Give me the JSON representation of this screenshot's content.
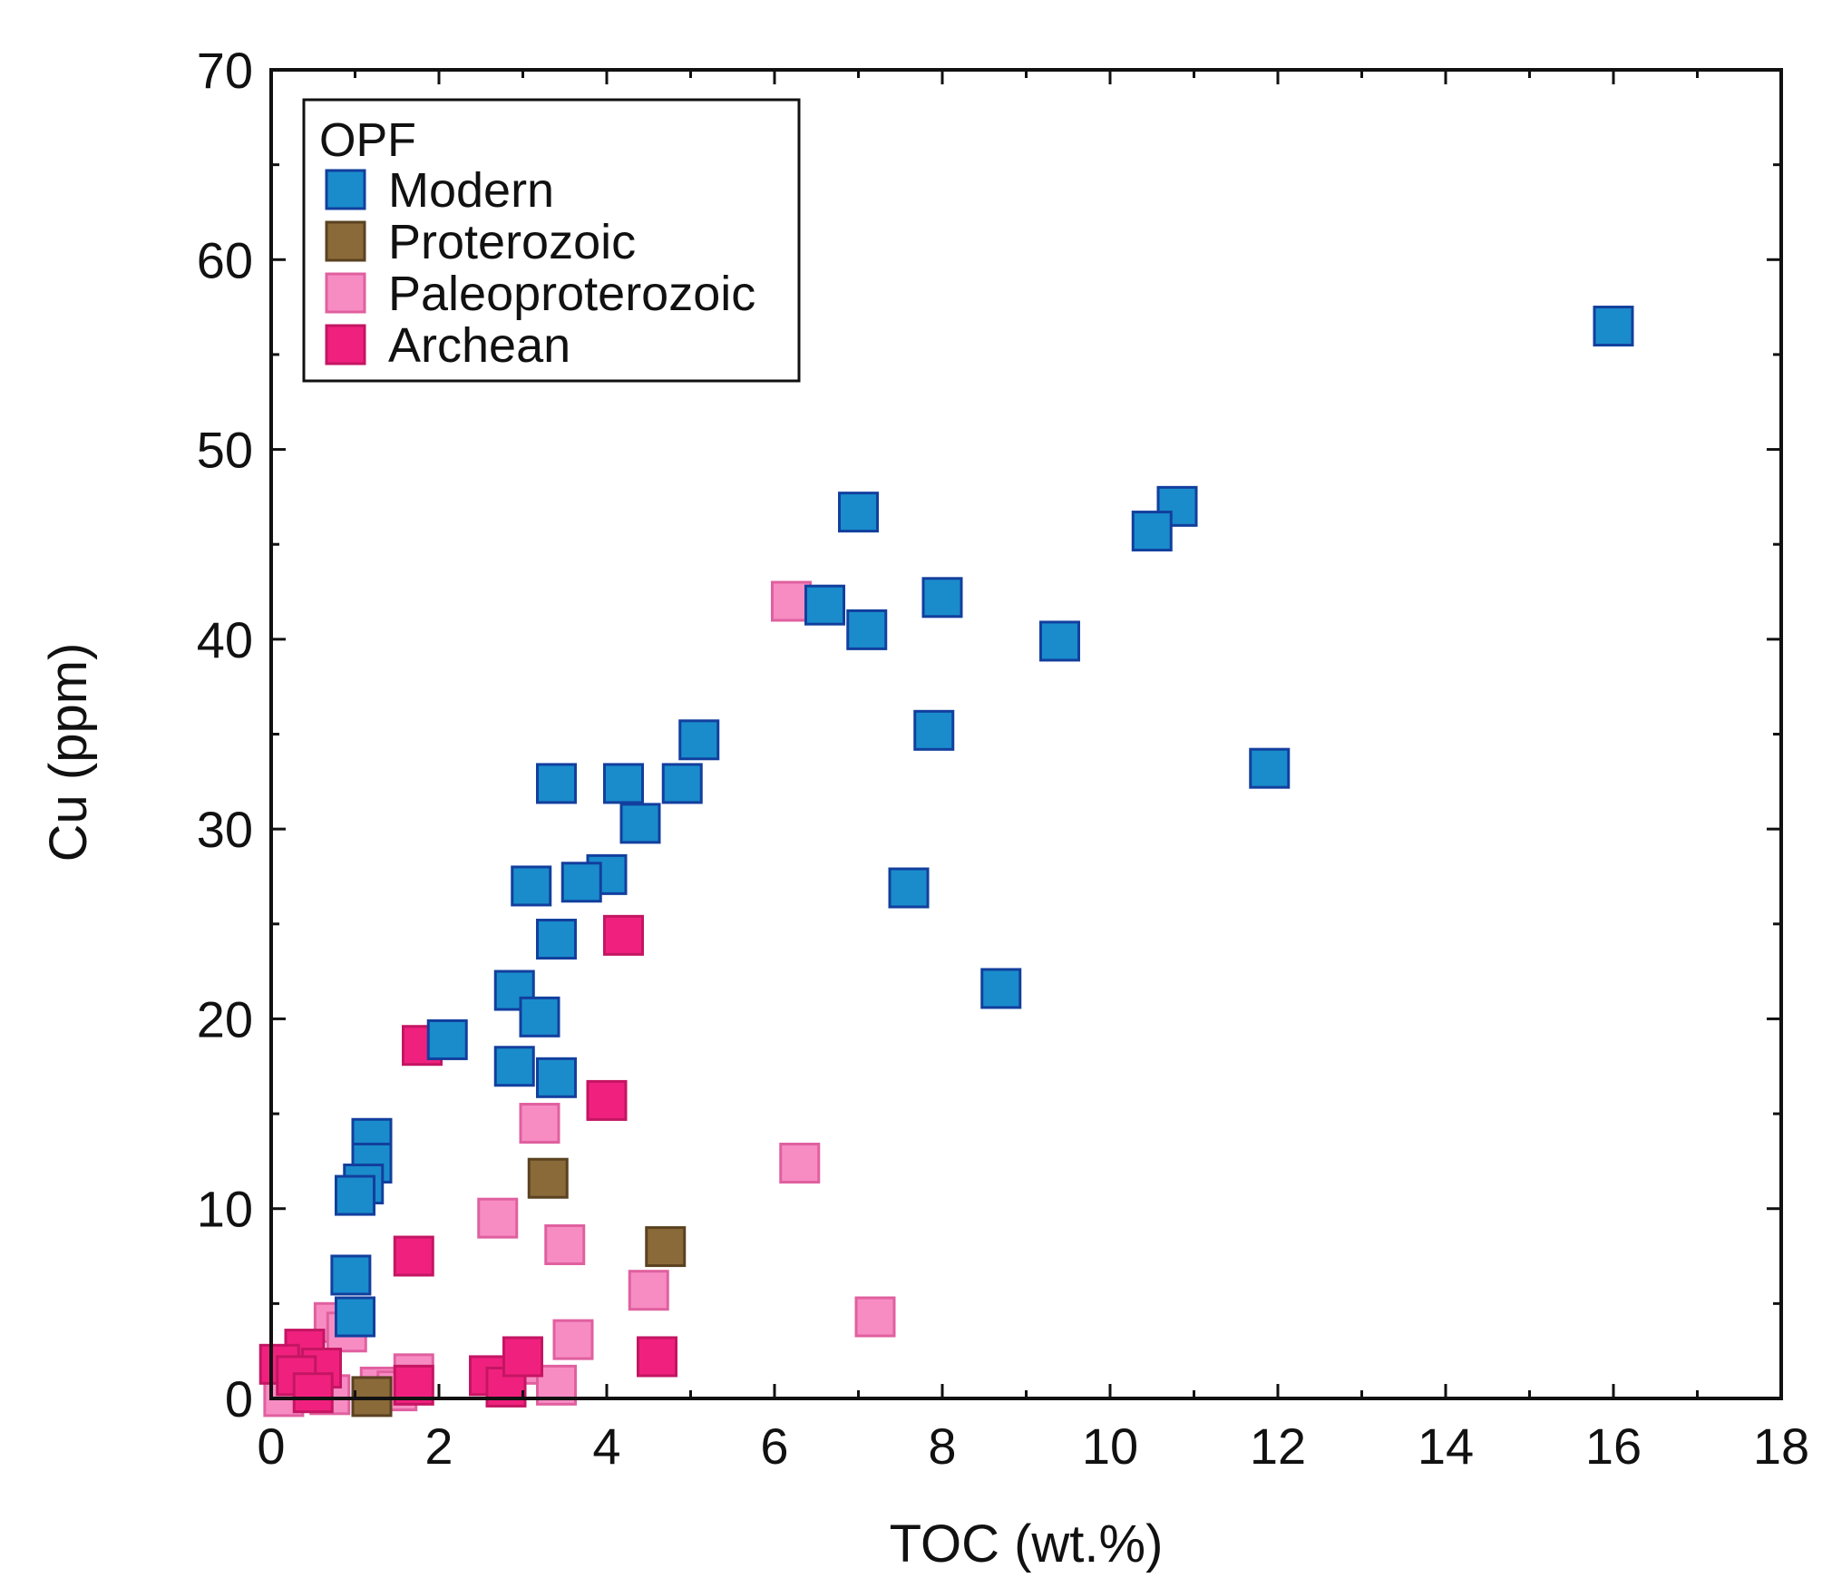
{
  "chart_data": {
    "type": "scatter",
    "title": "",
    "xlabel": "TOC (wt.%)",
    "ylabel": "Cu (ppm)",
    "xlim": [
      0,
      18
    ],
    "ylim": [
      0,
      70
    ],
    "xticks": [
      0,
      2,
      4,
      6,
      8,
      10,
      12,
      14,
      16,
      18
    ],
    "xtick_labels": [
      "0",
      "2",
      "4",
      "6",
      "8",
      "10",
      "12",
      "14",
      "16",
      "18"
    ],
    "yticks": [
      0,
      10,
      20,
      30,
      40,
      50,
      60,
      70
    ],
    "ytick_labels": [
      "0",
      "10",
      "20",
      "30",
      "40",
      "50",
      "60",
      "70"
    ],
    "grid": false,
    "legend": {
      "title": "OPF",
      "position": "top-left"
    },
    "series": [
      {
        "name": "Modern",
        "fill": "#1a8ccb",
        "edge": "#123f9e",
        "points": [
          [
            16.0,
            56.5
          ],
          [
            10.8,
            47.0
          ],
          [
            10.5,
            45.7
          ],
          [
            7.0,
            46.7
          ],
          [
            6.6,
            41.8
          ],
          [
            7.1,
            40.5
          ],
          [
            8.0,
            42.2
          ],
          [
            9.4,
            39.9
          ],
          [
            5.1,
            34.7
          ],
          [
            7.9,
            35.2
          ],
          [
            11.9,
            33.2
          ],
          [
            3.4,
            32.4
          ],
          [
            4.2,
            32.4
          ],
          [
            4.9,
            32.4
          ],
          [
            4.4,
            30.3
          ],
          [
            4.0,
            27.6
          ],
          [
            3.7,
            27.2
          ],
          [
            3.1,
            27.0
          ],
          [
            7.6,
            26.9
          ],
          [
            3.4,
            24.2
          ],
          [
            2.9,
            21.5
          ],
          [
            3.2,
            20.1
          ],
          [
            8.7,
            21.6
          ],
          [
            2.1,
            18.9
          ],
          [
            2.9,
            17.5
          ],
          [
            3.4,
            16.9
          ],
          [
            1.2,
            13.7
          ],
          [
            1.2,
            12.4
          ],
          [
            1.1,
            11.3
          ],
          [
            1.0,
            10.7
          ],
          [
            0.95,
            6.5
          ],
          [
            1.0,
            4.3
          ]
        ]
      },
      {
        "name": "Proterozoic",
        "fill": "#8b6a3a",
        "edge": "#5a4220",
        "points": [
          [
            3.3,
            11.6
          ],
          [
            4.7,
            8.0
          ],
          [
            1.2,
            0.1
          ]
        ]
      },
      {
        "name": "Paleoproterozoic",
        "fill": "#f78cc3",
        "edge": "#e0609f",
        "points": [
          [
            6.2,
            42.0
          ],
          [
            6.3,
            12.4
          ],
          [
            3.2,
            14.5
          ],
          [
            2.7,
            9.5
          ],
          [
            3.5,
            8.1
          ],
          [
            4.5,
            5.7
          ],
          [
            7.2,
            4.3
          ],
          [
            3.6,
            3.1
          ],
          [
            3.0,
            1.8
          ],
          [
            3.4,
            0.7
          ],
          [
            1.7,
            1.3
          ],
          [
            1.3,
            0.6
          ],
          [
            0.75,
            4.0
          ],
          [
            0.9,
            3.5
          ],
          [
            0.2,
            1.0
          ],
          [
            0.4,
            0.5
          ],
          [
            0.6,
            0.6
          ],
          [
            0.7,
            0.2
          ],
          [
            0.15,
            0.1
          ],
          [
            1.5,
            0.4
          ]
        ]
      },
      {
        "name": "Archean",
        "fill": "#f0217e",
        "edge": "#c41563",
        "points": [
          [
            4.2,
            24.4
          ],
          [
            1.8,
            18.6
          ],
          [
            4.0,
            15.7
          ],
          [
            1.7,
            7.5
          ],
          [
            4.6,
            2.2
          ],
          [
            2.6,
            1.2
          ],
          [
            2.8,
            0.6
          ],
          [
            3.0,
            2.2
          ],
          [
            0.4,
            2.6
          ],
          [
            0.1,
            1.8
          ],
          [
            0.6,
            1.6
          ],
          [
            0.3,
            1.2
          ],
          [
            1.7,
            0.7
          ],
          [
            0.5,
            0.3
          ]
        ]
      }
    ]
  }
}
